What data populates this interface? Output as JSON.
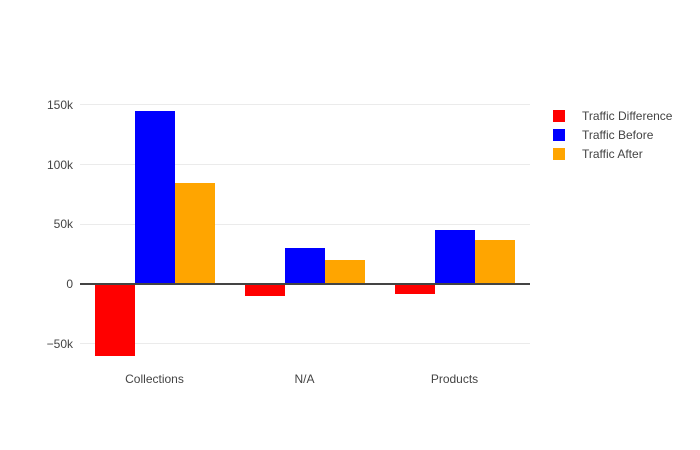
{
  "chart_data": {
    "type": "bar",
    "mode": "grouped",
    "title": "",
    "xlabel": "",
    "ylabel": "",
    "categories": [
      "Collections",
      "N/A",
      "Products"
    ],
    "series": [
      {
        "name": "Traffic Difference",
        "color": "#FF0000",
        "values": [
          -60000,
          -10000,
          -8000
        ]
      },
      {
        "name": "Traffic Before",
        "color": "#0000FF",
        "values": [
          145000,
          30000,
          45000
        ]
      },
      {
        "name": "Traffic After",
        "color": "#FFA500",
        "values": [
          85000,
          20000,
          37000
        ]
      }
    ],
    "yticks": [
      {
        "value": 150000,
        "label": "150k"
      },
      {
        "value": 100000,
        "label": "100k"
      },
      {
        "value": 50000,
        "label": "50k"
      },
      {
        "value": 0,
        "label": "0"
      },
      {
        "value": -50000,
        "label": "−50k"
      }
    ],
    "ylim": [
      -70000,
      162000
    ],
    "grid": true,
    "legend_position": "right",
    "colors": {
      "background": "#FFFFFF",
      "gridline": "#EBEBEB",
      "zeroline": "#444444",
      "text": "#444444"
    }
  }
}
